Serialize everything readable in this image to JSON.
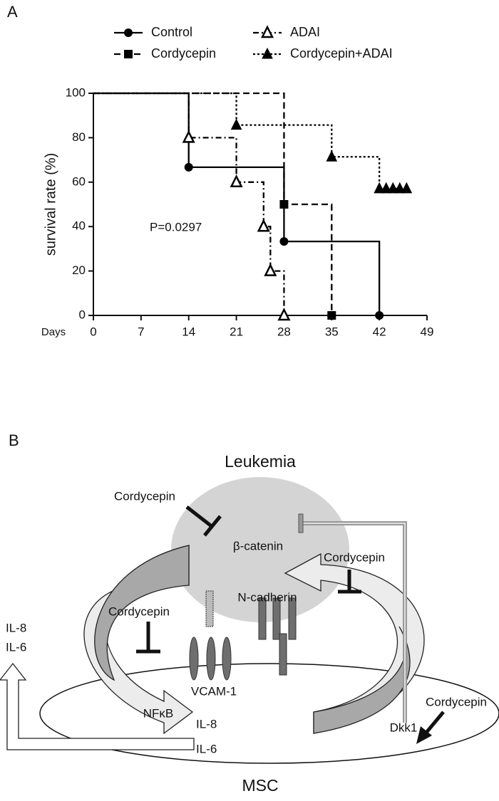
{
  "panel_a": "A",
  "chart_data": {
    "type": "step",
    "x_label": "Days",
    "y_label": "survival rate (%)",
    "annotation": "P=0.0297",
    "xlim": [
      0,
      49
    ],
    "xticks": [
      0,
      7,
      14,
      21,
      28,
      35,
      42,
      49
    ],
    "ylim": [
      0,
      100
    ],
    "yticks": [
      0,
      20,
      40,
      60,
      80,
      100
    ],
    "series": [
      {
        "name": "Control",
        "color": "#000000",
        "dash": "solid",
        "marker": "circle",
        "x": [
          0,
          14,
          28,
          42
        ],
        "values": [
          100,
          66.7,
          33.3,
          0
        ]
      },
      {
        "name": "Cordycepin",
        "color": "#000000",
        "dash": "dashed",
        "marker": "square",
        "x": [
          0,
          28,
          35
        ],
        "values": [
          100,
          50,
          0
        ]
      },
      {
        "name": "ADAI",
        "color": "#000000",
        "dash": "dashdot",
        "marker": "open-triangle",
        "x": [
          0,
          14,
          21,
          25,
          26,
          28
        ],
        "values": [
          100,
          80,
          60,
          40,
          20,
          0
        ]
      },
      {
        "name": "Cordycepin+ADAI",
        "color": "#000000",
        "dash": "dotted",
        "marker": "triangle",
        "x": [
          0,
          21,
          35,
          42,
          43,
          44,
          45,
          46
        ],
        "values": [
          100,
          85.7,
          71.4,
          57.1,
          57.1,
          57.1,
          57.1,
          57.1
        ]
      }
    ]
  },
  "diagram": {
    "panel_label": "B",
    "labels": [
      "Leukemia",
      "Cordycepin",
      "β-catenin",
      "Cordycepin",
      "N-cadherin",
      "Cordycepin",
      "Cordycepin",
      "IL-8",
      "IL-6",
      "VCAM-1",
      "NFκB",
      "IL-8",
      "Dkk1",
      "IL-6",
      "MSC"
    ]
  }
}
